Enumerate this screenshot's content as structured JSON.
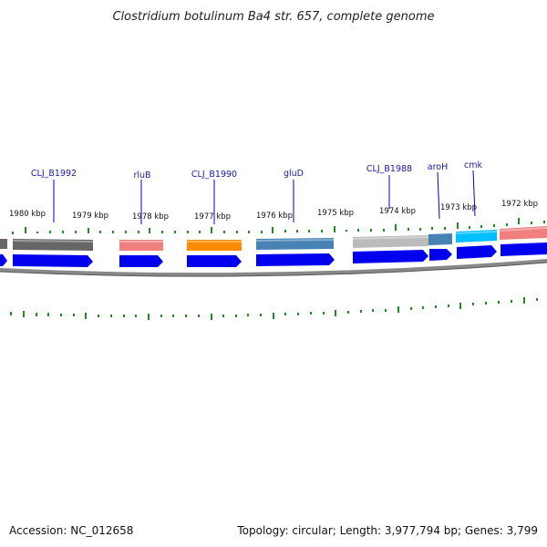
{
  "title": "Clostridium botulinum Ba4 str. 657, complete genome",
  "footer": {
    "accession": "Accession: NC_012658",
    "summary": "Topology: circular; Length: 3,977,794 bp; Genes: 3,799"
  },
  "scale_labels": [
    "1980 kbp",
    "1979 kbp",
    "1978 kbp",
    "1977 kbp",
    "1976 kbp",
    "1975 kbp",
    "1974 kbp",
    "1973 kbp",
    "1972 kbp"
  ],
  "gene_labels": [
    "CLJ_B1992",
    "rluB",
    "CLJ_B1990",
    "gluD",
    "CLJ_B1988",
    "aroH",
    "cmk"
  ],
  "colors": {
    "backbone": "#888888",
    "cds_arrow": "#0000ee",
    "tick": "#228b22",
    "label_line": "#0000cc"
  },
  "features": [
    {
      "name": "feature-block-partial",
      "color": "#666666"
    },
    {
      "name": "feature-block-clj-b1992",
      "color": "#666666"
    },
    {
      "name": "feature-block-rlub",
      "color": "#f08080"
    },
    {
      "name": "feature-block-clj-b1990",
      "color": "#ff8c00"
    },
    {
      "name": "feature-block-glud",
      "color": "#4682b4"
    },
    {
      "name": "feature-block-clj-b1988",
      "color": "#bbbbbb"
    },
    {
      "name": "feature-block-aroh",
      "color": "#4682b4"
    },
    {
      "name": "feature-block-cmk",
      "color": "#00bfff"
    },
    {
      "name": "feature-block-right",
      "color": "#f08080"
    }
  ]
}
